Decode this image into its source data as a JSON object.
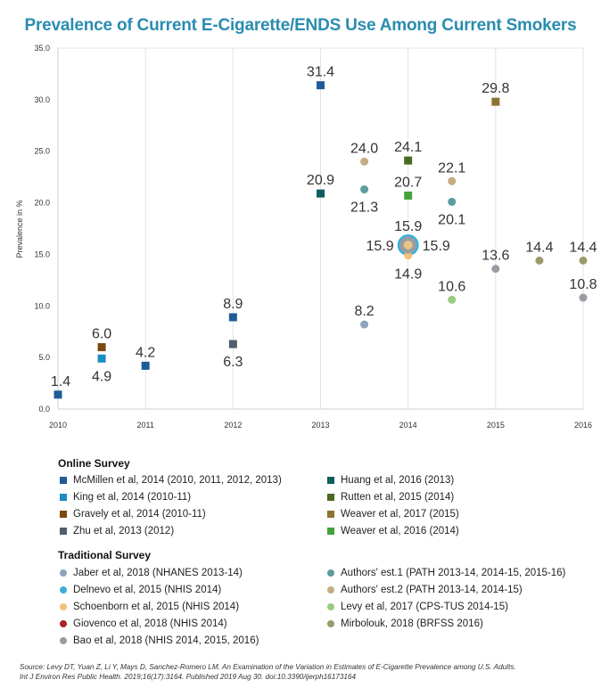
{
  "chart_data": {
    "type": "scatter",
    "title": "Prevalence of Current E-Cigarette/ENDS Use Among Current Smokers",
    "ylabel": "Prevalence in %",
    "xlabel": "",
    "xlim": [
      2010,
      2016
    ],
    "ylim": [
      0,
      35
    ],
    "x_ticks": [
      "2010",
      "2011",
      "2012",
      "2013",
      "2014",
      "2015",
      "2016"
    ],
    "y_ticks": [
      "0.0",
      "5.0",
      "10.0",
      "15.0",
      "20.0",
      "25.0",
      "30.0",
      "35.0"
    ],
    "grid": "vertical",
    "series": [
      {
        "name": "McMillen et al, 2014 (2010, 2011, 2012, 2013)",
        "marker": "square",
        "color": "#1e5c99",
        "points": [
          {
            "x": 2010,
            "y": 1.4,
            "label": "1.4",
            "pos": "top"
          },
          {
            "x": 2011,
            "y": 4.2,
            "label": "4.2",
            "pos": "top"
          },
          {
            "x": 2012,
            "y": 8.9,
            "label": "8.9",
            "pos": "top"
          },
          {
            "x": 2013,
            "y": 31.4,
            "label": "31.4",
            "pos": "top"
          }
        ]
      },
      {
        "name": "King et al, 2014 (2010-11)",
        "marker": "square",
        "color": "#1b8cc4",
        "points": [
          {
            "x": 2010.5,
            "y": 4.9,
            "label": "4.9",
            "pos": "bottom"
          }
        ]
      },
      {
        "name": "Gravely et al, 2014 (2010-11)",
        "marker": "square",
        "color": "#7a4a10",
        "points": [
          {
            "x": 2010.5,
            "y": 6.0,
            "label": "6.0",
            "pos": "top"
          }
        ]
      },
      {
        "name": "Zhu et al, 2013 (2012)",
        "marker": "square",
        "color": "#4f5d6c",
        "points": [
          {
            "x": 2012,
            "y": 6.3,
            "label": "6.3",
            "pos": "bottom"
          }
        ]
      },
      {
        "name": "Huang et al, 2016 (2013)",
        "marker": "square",
        "color": "#0f5e5e",
        "points": [
          {
            "x": 2013,
            "y": 20.9,
            "label": "20.9",
            "pos": "top"
          }
        ]
      },
      {
        "name": "Rutten et al, 2015 (2014)",
        "marker": "square",
        "color": "#4a6a22",
        "points": [
          {
            "x": 2014,
            "y": 24.1,
            "label": "24.1",
            "pos": "top"
          }
        ]
      },
      {
        "name": "Weaver et al, 2017 (2015)",
        "marker": "square",
        "color": "#8c7530",
        "points": [
          {
            "x": 2015,
            "y": 29.8,
            "label": "29.8",
            "pos": "top"
          }
        ]
      },
      {
        "name": "Weaver et al, 2016 (2014)",
        "marker": "square",
        "color": "#46a03c",
        "points": [
          {
            "x": 2014,
            "y": 20.7,
            "label": "20.7",
            "pos": "top"
          }
        ]
      },
      {
        "name": "Jaber et al, 2018 (NHANES 2013-14)",
        "marker": "circle",
        "color": "#8ea3bd",
        "points": [
          {
            "x": 2013.5,
            "y": 8.2,
            "label": "8.2",
            "pos": "top"
          }
        ]
      },
      {
        "name": "Delnevo et al, 2015 (NHIS 2014)",
        "marker": "circle",
        "color": "#3ab0d8",
        "points": [
          {
            "x": 2014,
            "y": 15.9,
            "label": "15.9",
            "pos": "top"
          }
        ]
      },
      {
        "name": "Schoenborn et al, 2015 (NHIS 2014)",
        "marker": "circle",
        "color": "#f3c07a",
        "points": [
          {
            "x": 2014,
            "y": 14.9,
            "label": "14.9",
            "pos": "bottom"
          }
        ]
      },
      {
        "name": "Giovenco et al, 2018 (NHIS 2014)",
        "marker": "circle",
        "color": "#a8232a",
        "points": [
          {
            "x": 2014,
            "y": 15.9,
            "label": "15.9",
            "pos": "left"
          }
        ]
      },
      {
        "name": "Bao et al, 2018 (NHIS 2014, 2015, 2016)",
        "marker": "circle",
        "color": "#9a9ca3",
        "points": [
          {
            "x": 2014,
            "y": 15.9,
            "label": "15.9",
            "pos": "right"
          },
          {
            "x": 2015,
            "y": 13.6,
            "label": "13.6",
            "pos": "top"
          },
          {
            "x": 2016,
            "y": 10.8,
            "label": "10.8",
            "pos": "top"
          }
        ]
      },
      {
        "name": "Authors' est.1 (PATH 2013-14, 2014-15, 2015-16)",
        "marker": "circle",
        "color": "#5b9d9d",
        "points": [
          {
            "x": 2013.5,
            "y": 21.3,
            "label": "21.3",
            "pos": "bottom"
          },
          {
            "x": 2014.5,
            "y": 20.1,
            "label": "20.1",
            "pos": "bottom"
          }
        ]
      },
      {
        "name": "Authors' est.2 (PATH 2013-14, 2014-15)",
        "marker": "circle",
        "color": "#c4ab82",
        "points": [
          {
            "x": 2013.5,
            "y": 24.0,
            "label": "24.0",
            "pos": "top"
          },
          {
            "x": 2014.5,
            "y": 22.1,
            "label": "22.1",
            "pos": "top"
          }
        ]
      },
      {
        "name": "Levy et al, 2017 (CPS-TUS 2014-15)",
        "marker": "circle",
        "color": "#9acb7f",
        "points": [
          {
            "x": 2014.5,
            "y": 10.6,
            "label": "10.6",
            "pos": "top"
          }
        ]
      },
      {
        "name": "Mirbolouk, 2018 (BRFSS 2016)",
        "marker": "circle",
        "color": "#9a9a6c",
        "points": [
          {
            "x": 2015.5,
            "y": 14.4,
            "label": "14.4",
            "pos": "top"
          },
          {
            "x": 2016,
            "y": 14.4,
            "label": "14.4",
            "pos": "top"
          }
        ]
      }
    ]
  },
  "legend": {
    "online_title": "Online Survey",
    "traditional_title": "Traditional Survey",
    "online_left": [
      0,
      1,
      2,
      3
    ],
    "online_right": [
      4,
      5,
      6,
      7
    ],
    "traditional_left": [
      8,
      9,
      10,
      11,
      12
    ],
    "traditional_right": [
      13,
      14,
      15,
      16
    ]
  },
  "source": {
    "line1": "Source: Levy DT, Yuan Z, Li Y, Mays D, Sanchez-Romero LM. An Examination of the Variation in Estimates of E-Cigarette Prevalence among U.S. Adults.",
    "line2": "Int J Environ Res Public Health. 2019;16(17):3164. Published 2019 Aug 30. doi:10.3390/ijerph16173164"
  }
}
